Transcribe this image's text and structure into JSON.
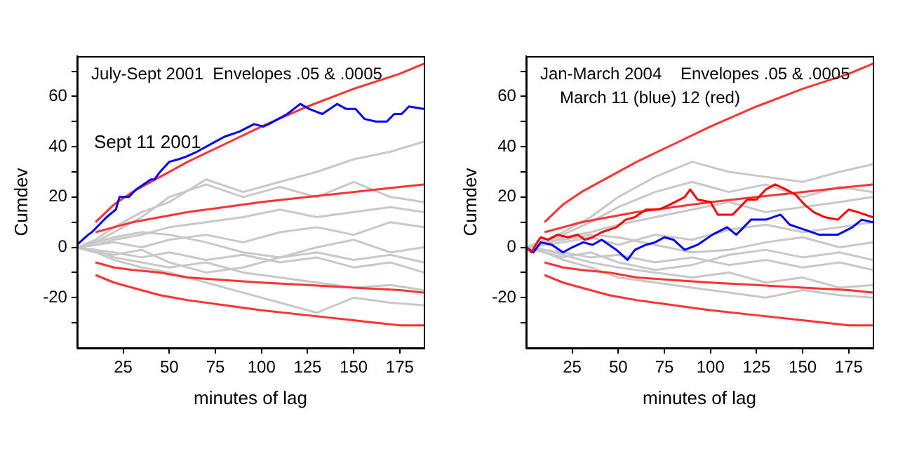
{
  "chart_data": [
    {
      "type": "line",
      "xlabel": "minutes of lag",
      "ylabel": "Cumdev",
      "xlim": [
        0,
        188
      ],
      "ylim": [
        -40,
        76
      ],
      "xticks": [
        25,
        50,
        75,
        100,
        125,
        150,
        175
      ],
      "yticks": [
        {
          "value": -30,
          "label": null
        },
        -20,
        {
          "value": -10,
          "label": null
        },
        0,
        {
          "value": 10,
          "label": null
        },
        20,
        {
          "value": 30,
          "label": null
        },
        40,
        {
          "value": 50,
          "label": null
        },
        60,
        {
          "value": 70,
          "label": null
        }
      ],
      "grid": false,
      "legend": false,
      "marker": "none",
      "line_style": "solid",
      "annotations": [
        "July-Sept 2001  Envelopes .05 & .0005"
      ],
      "series": [
        {
          "color": "#c8c8c8",
          "x": [
            0,
            10,
            20,
            35,
            50,
            70,
            90,
            110,
            130,
            150,
            170,
            188
          ],
          "values": [
            0,
            3,
            8,
            14,
            18,
            27,
            22,
            26,
            30,
            35,
            38,
            42
          ]
        },
        {
          "color": "#c8c8c8",
          "x": [
            0,
            10,
            20,
            35,
            50,
            70,
            90,
            110,
            130,
            150,
            170,
            188
          ],
          "values": [
            0,
            2,
            6,
            12,
            20,
            25,
            20,
            24,
            20,
            26,
            20,
            18
          ]
        },
        {
          "color": "#c8c8c8",
          "x": [
            0,
            10,
            20,
            35,
            50,
            70,
            90,
            110,
            130,
            150,
            170,
            188
          ],
          "values": [
            0,
            -2,
            -5,
            -8,
            -10,
            -14,
            -18,
            -22,
            -26,
            -20,
            -22,
            -23
          ]
        },
        {
          "color": "#c8c8c8",
          "x": [
            0,
            10,
            20,
            35,
            50,
            70,
            90,
            110,
            130,
            150,
            170,
            188
          ],
          "values": [
            0,
            1,
            3,
            5,
            8,
            10,
            12,
            15,
            12,
            14,
            16,
            14
          ]
        },
        {
          "color": "#c8c8c8",
          "x": [
            0,
            10,
            20,
            35,
            50,
            70,
            90,
            110,
            130,
            150,
            170,
            188
          ],
          "values": [
            0,
            -1,
            -4,
            -6,
            -8,
            -6,
            -10,
            -12,
            -14,
            -16,
            -15,
            -17
          ]
        },
        {
          "color": "#c8c8c8",
          "x": [
            0,
            10,
            20,
            35,
            50,
            70,
            90,
            110,
            130,
            150,
            170,
            188
          ],
          "values": [
            0,
            1,
            2,
            0,
            3,
            5,
            2,
            6,
            8,
            5,
            10,
            8
          ]
        },
        {
          "color": "#c8c8c8",
          "x": [
            0,
            10,
            20,
            35,
            50,
            70,
            90,
            110,
            130,
            150,
            170,
            188
          ],
          "values": [
            0,
            -1,
            -2,
            -4,
            -2,
            -5,
            -3,
            -6,
            -4,
            -8,
            -6,
            -10
          ]
        },
        {
          "color": "#c8c8c8",
          "x": [
            0,
            10,
            20,
            35,
            50,
            70,
            90,
            110,
            130,
            150,
            170,
            188
          ],
          "values": [
            0,
            2,
            4,
            6,
            5,
            2,
            -2,
            -4,
            0,
            3,
            -2,
            0
          ]
        },
        {
          "color": "#c8c8c8",
          "x": [
            0,
            10,
            20,
            35,
            50,
            70,
            90,
            110,
            130,
            150,
            170,
            188
          ],
          "values": [
            0,
            -2,
            -3,
            -1,
            -6,
            -10,
            -8,
            -4,
            -2,
            -5,
            -3,
            -6
          ]
        },
        {
          "color": "#ff3333",
          "x": [
            10,
            20,
            30,
            45,
            60,
            80,
            100,
            125,
            150,
            175,
            188
          ],
          "values": [
            10,
            17,
            22,
            28,
            34,
            41,
            48,
            56,
            63,
            69,
            73
          ]
        },
        {
          "color": "#ff3333",
          "x": [
            10,
            20,
            30,
            45,
            60,
            80,
            100,
            125,
            150,
            175,
            188
          ],
          "values": [
            6,
            8,
            10,
            12,
            14,
            16,
            18,
            20,
            22,
            24,
            25
          ]
        },
        {
          "color": "#ff3333",
          "x": [
            10,
            20,
            30,
            45,
            60,
            80,
            100,
            125,
            150,
            175,
            188
          ],
          "values": [
            -6,
            -8,
            -9,
            -10,
            -12,
            -13,
            -14,
            -15,
            -16,
            -17,
            -18
          ]
        },
        {
          "color": "#ff3333",
          "x": [
            10,
            20,
            30,
            45,
            60,
            80,
            100,
            125,
            150,
            175,
            188
          ],
          "values": [
            -11,
            -14,
            -16,
            -19,
            -21,
            -23,
            -25,
            -27,
            -29,
            -31,
            -31
          ]
        },
        {
          "name": "Sept 11 2001",
          "color": "#0000ff",
          "x": [
            0,
            6,
            8,
            12,
            16,
            21,
            23,
            28,
            32,
            36,
            40,
            42,
            45,
            50,
            55,
            59,
            65,
            75,
            80,
            88,
            96,
            101,
            104,
            109,
            114,
            121,
            126,
            133,
            141,
            146,
            151,
            156,
            162,
            168,
            172,
            176,
            180,
            188
          ],
          "values": [
            1,
            5,
            6,
            9,
            12,
            15,
            20,
            20,
            23,
            25,
            27,
            27,
            30,
            34,
            35,
            36,
            38,
            42,
            44,
            46,
            49,
            48,
            49,
            51,
            53,
            57,
            55,
            53,
            57,
            55,
            55,
            51,
            50,
            50,
            53,
            53,
            56,
            55
          ]
        }
      ]
    },
    {
      "type": "line",
      "xlabel": "minutes of lag",
      "ylabel": "Cumdev",
      "xlim": [
        0,
        188
      ],
      "ylim": [
        -40,
        76
      ],
      "xticks": [
        25,
        50,
        75,
        100,
        125,
        150,
        175
      ],
      "yticks": [
        {
          "value": -30,
          "label": null
        },
        -20,
        {
          "value": -10,
          "label": null
        },
        0,
        {
          "value": 10,
          "label": null
        },
        20,
        {
          "value": 30,
          "label": null
        },
        40,
        {
          "value": 50,
          "label": null
        },
        60,
        {
          "value": 70,
          "label": null
        }
      ],
      "grid": false,
      "legend": false,
      "marker": "none",
      "line_style": "solid",
      "annotations": [
        "Jan-March 2004    Envelopes .05 & .0005",
        "March 11 (blue) 12 (red)"
      ],
      "series": [
        {
          "color": "#c8c8c8",
          "x": [
            0,
            10,
            20,
            35,
            50,
            70,
            90,
            110,
            130,
            150,
            170,
            188
          ],
          "values": [
            0,
            3,
            6,
            12,
            20,
            28,
            34,
            30,
            28,
            26,
            30,
            33
          ]
        },
        {
          "color": "#c8c8c8",
          "x": [
            0,
            10,
            20,
            35,
            50,
            70,
            90,
            110,
            130,
            150,
            170,
            188
          ],
          "values": [
            0,
            2,
            5,
            10,
            16,
            22,
            26,
            22,
            25,
            20,
            24,
            22
          ]
        },
        {
          "color": "#c8c8c8",
          "x": [
            0,
            10,
            20,
            35,
            50,
            70,
            90,
            110,
            130,
            150,
            170,
            188
          ],
          "values": [
            0,
            -2,
            -5,
            -8,
            -12,
            -14,
            -16,
            -18,
            -20,
            -17,
            -19,
            -20
          ]
        },
        {
          "color": "#c8c8c8",
          "x": [
            0,
            10,
            20,
            35,
            50,
            70,
            90,
            110,
            130,
            150,
            170,
            188
          ],
          "values": [
            0,
            1,
            4,
            6,
            9,
            12,
            15,
            18,
            14,
            16,
            18,
            20
          ]
        },
        {
          "color": "#c8c8c8",
          "x": [
            0,
            10,
            20,
            35,
            50,
            70,
            90,
            110,
            130,
            150,
            170,
            188
          ],
          "values": [
            0,
            -1,
            -3,
            -6,
            -8,
            -10,
            -12,
            -10,
            -14,
            -12,
            -16,
            -15
          ]
        },
        {
          "color": "#c8c8c8",
          "x": [
            0,
            10,
            20,
            35,
            50,
            70,
            90,
            110,
            130,
            150,
            170,
            188
          ],
          "values": [
            0,
            1,
            2,
            4,
            1,
            5,
            3,
            7,
            9,
            6,
            8,
            10
          ]
        },
        {
          "color": "#c8c8c8",
          "x": [
            0,
            10,
            20,
            35,
            50,
            70,
            90,
            110,
            130,
            150,
            170,
            188
          ],
          "values": [
            0,
            -1,
            -2,
            -4,
            -3,
            -6,
            -4,
            -7,
            -5,
            -8,
            -6,
            -9
          ]
        },
        {
          "color": "#c8c8c8",
          "x": [
            0,
            10,
            20,
            35,
            50,
            70,
            90,
            110,
            130,
            150,
            170,
            188
          ],
          "values": [
            0,
            2,
            3,
            5,
            4,
            1,
            -2,
            -1,
            2,
            4,
            0,
            2
          ]
        },
        {
          "color": "#c8c8c8",
          "x": [
            0,
            10,
            20,
            35,
            50,
            70,
            90,
            110,
            130,
            150,
            170,
            188
          ],
          "values": [
            0,
            -2,
            -4,
            -2,
            -6,
            -9,
            -7,
            -3,
            -1,
            -4,
            -2,
            -5
          ]
        },
        {
          "color": "#ff3333",
          "x": [
            10,
            20,
            30,
            45,
            60,
            80,
            100,
            125,
            150,
            175,
            188
          ],
          "values": [
            10,
            17,
            22,
            28,
            34,
            41,
            48,
            56,
            63,
            69,
            73
          ]
        },
        {
          "color": "#ff3333",
          "x": [
            10,
            20,
            30,
            45,
            60,
            80,
            100,
            125,
            150,
            175,
            188
          ],
          "values": [
            6,
            8,
            10,
            12,
            14,
            16,
            18,
            20,
            22,
            24,
            25
          ]
        },
        {
          "color": "#ff3333",
          "x": [
            10,
            20,
            30,
            45,
            60,
            80,
            100,
            125,
            150,
            175,
            188
          ],
          "values": [
            -6,
            -8,
            -9,
            -10,
            -12,
            -13,
            -14,
            -15,
            -16,
            -17,
            -18
          ]
        },
        {
          "color": "#ff3333",
          "x": [
            10,
            20,
            30,
            45,
            60,
            80,
            100,
            125,
            150,
            175,
            188
          ],
          "values": [
            -11,
            -14,
            -16,
            -19,
            -21,
            -23,
            -25,
            -27,
            -29,
            -31,
            -31
          ]
        },
        {
          "color": "#0000ff",
          "x": [
            0,
            4,
            8,
            14,
            20,
            25,
            31,
            36,
            41,
            49,
            55,
            59,
            65,
            70,
            75,
            80,
            86,
            93,
            101,
            109,
            114,
            122,
            130,
            138,
            143,
            151,
            159,
            169,
            177,
            182,
            188
          ],
          "values": [
            0,
            -2,
            2,
            1,
            -2,
            0,
            2,
            1,
            3,
            -1,
            -5,
            -1,
            1,
            2,
            4,
            3,
            -1,
            1,
            5,
            8,
            5,
            11,
            11,
            13,
            9,
            7,
            5,
            5,
            8,
            11,
            10
          ]
        },
        {
          "color": "#ff0000",
          "x": [
            0,
            3,
            6,
            8,
            12,
            17,
            23,
            28,
            32,
            36,
            41,
            49,
            54,
            59,
            65,
            72,
            78,
            86,
            89,
            93,
            100,
            104,
            112,
            120,
            125,
            130,
            135,
            141,
            146,
            151,
            156,
            162,
            169,
            175,
            180,
            188
          ],
          "values": [
            0,
            -2,
            2,
            4,
            3,
            5,
            4,
            5,
            3,
            4,
            6,
            8,
            11,
            12,
            15,
            15,
            17,
            20,
            23,
            19,
            18,
            13,
            13,
            19,
            19,
            23,
            25,
            23,
            21,
            17,
            14,
            12,
            11,
            15,
            14,
            12
          ]
        }
      ]
    }
  ]
}
